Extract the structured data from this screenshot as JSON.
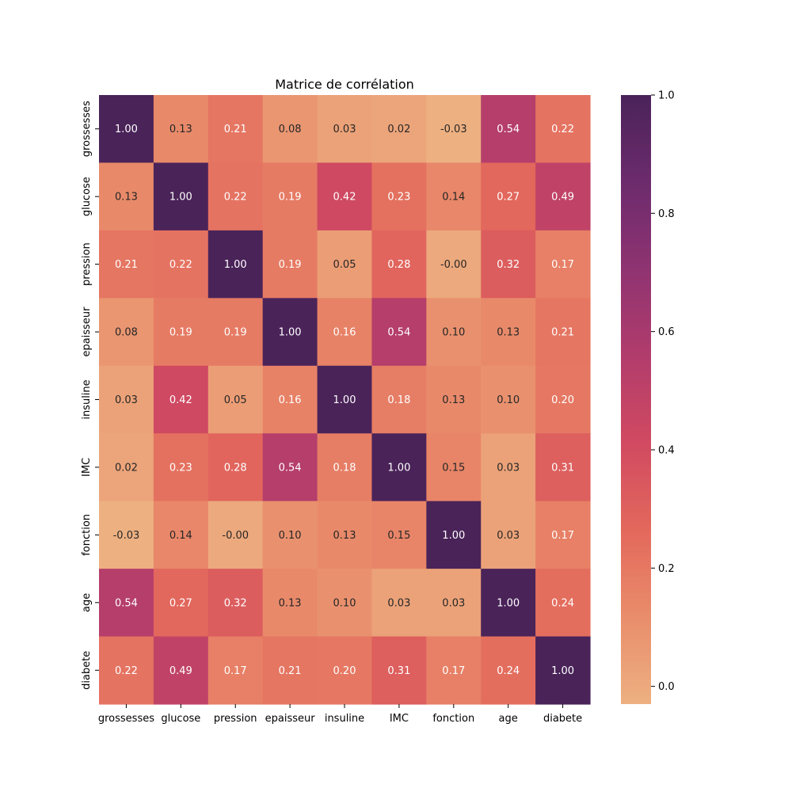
{
  "chart_data": {
    "type": "heatmap",
    "title": "Matrice de corrélation",
    "xlabel": "",
    "ylabel": "",
    "variables": [
      "grossesses",
      "glucose",
      "pression",
      "epaisseur",
      "insuline",
      "IMC",
      "fonction",
      "age",
      "diabete"
    ],
    "values": [
      [
        1.0,
        0.13,
        0.21,
        0.08,
        0.03,
        0.02,
        -0.03,
        0.54,
        0.22
      ],
      [
        0.13,
        1.0,
        0.22,
        0.19,
        0.42,
        0.23,
        0.14,
        0.27,
        0.49
      ],
      [
        0.21,
        0.22,
        1.0,
        0.19,
        0.05,
        0.28,
        -0.0,
        0.32,
        0.17
      ],
      [
        0.08,
        0.19,
        0.19,
        1.0,
        0.16,
        0.54,
        0.1,
        0.13,
        0.21
      ],
      [
        0.03,
        0.42,
        0.05,
        0.16,
        1.0,
        0.18,
        0.13,
        0.1,
        0.2
      ],
      [
        0.02,
        0.23,
        0.28,
        0.54,
        0.18,
        1.0,
        0.15,
        0.03,
        0.31
      ],
      [
        -0.03,
        0.14,
        -0.0,
        0.1,
        0.13,
        0.15,
        1.0,
        0.03,
        0.17
      ],
      [
        0.54,
        0.27,
        0.32,
        0.13,
        0.1,
        0.03,
        0.03,
        1.0,
        0.24
      ],
      [
        0.22,
        0.49,
        0.17,
        0.21,
        0.2,
        0.31,
        0.17,
        0.24,
        1.0
      ]
    ],
    "annotations": [
      [
        "1.00",
        "0.13",
        "0.21",
        "0.08",
        "0.03",
        "0.02",
        "-0.03",
        "0.54",
        "0.22"
      ],
      [
        "0.13",
        "1.00",
        "0.22",
        "0.19",
        "0.42",
        "0.23",
        "0.14",
        "0.27",
        "0.49"
      ],
      [
        "0.21",
        "0.22",
        "1.00",
        "0.19",
        "0.05",
        "0.28",
        "-0.00",
        "0.32",
        "0.17"
      ],
      [
        "0.08",
        "0.19",
        "0.19",
        "1.00",
        "0.16",
        "0.54",
        "0.10",
        "0.13",
        "0.21"
      ],
      [
        "0.03",
        "0.42",
        "0.05",
        "0.16",
        "1.00",
        "0.18",
        "0.13",
        "0.10",
        "0.20"
      ],
      [
        "0.02",
        "0.23",
        "0.28",
        "0.54",
        "0.18",
        "1.00",
        "0.15",
        "0.03",
        "0.31"
      ],
      [
        "-0.03",
        "0.14",
        "-0.00",
        "0.10",
        "0.13",
        "0.15",
        "1.00",
        "0.03",
        "0.17"
      ],
      [
        "0.54",
        "0.27",
        "0.32",
        "0.13",
        "0.10",
        "0.03",
        "0.03",
        "1.00",
        "0.24"
      ],
      [
        "0.22",
        "0.49",
        "0.17",
        "0.21",
        "0.20",
        "0.31",
        "0.17",
        "0.24",
        "1.00"
      ]
    ],
    "colorbar": {
      "range": [
        -0.03,
        1.0
      ],
      "ticks": [
        0.0,
        0.2,
        0.4,
        0.6,
        0.8,
        1.0
      ],
      "tick_labels": [
        "0.0",
        "0.2",
        "0.4",
        "0.6",
        "0.8",
        "1.0"
      ],
      "colormap": "flare",
      "color_stops": [
        "#edb081",
        "#e98d6b",
        "#e3685c",
        "#d14a61",
        "#b13c6c",
        "#8f3371",
        "#6c2b6d",
        "#4a2359"
      ]
    },
    "grid": false,
    "legend": "colorbar-right"
  }
}
